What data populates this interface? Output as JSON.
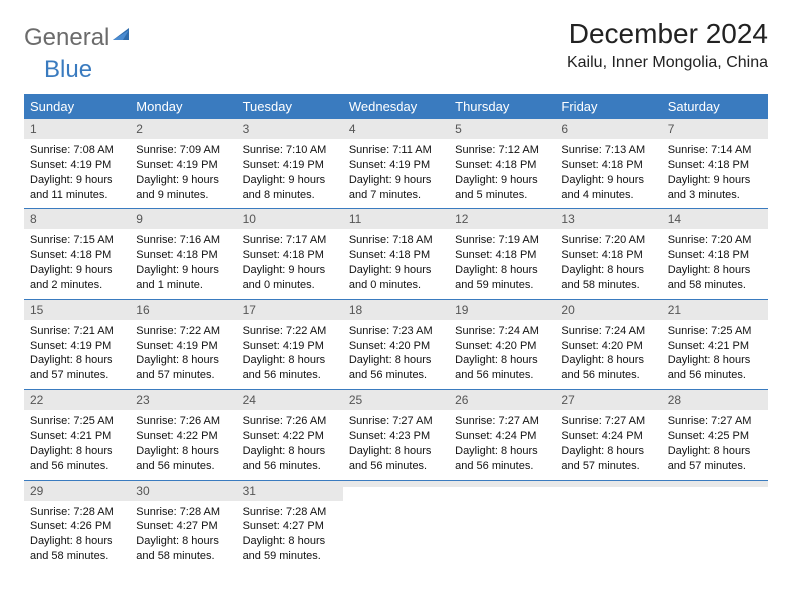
{
  "logo": {
    "text1": "General",
    "text2": "Blue"
  },
  "title": "December 2024",
  "location": "Kailu, Inner Mongolia, China",
  "colors": {
    "header_bg": "#3a7bbf",
    "daybar_bg": "#e8e8e8",
    "logo_gray": "#6b6b6b",
    "logo_blue": "#3a7bbf"
  },
  "day_names": [
    "Sunday",
    "Monday",
    "Tuesday",
    "Wednesday",
    "Thursday",
    "Friday",
    "Saturday"
  ],
  "weeks": [
    [
      {
        "n": "1",
        "sr": "7:08 AM",
        "ss": "4:19 PM",
        "dl": "9 hours and 11 minutes."
      },
      {
        "n": "2",
        "sr": "7:09 AM",
        "ss": "4:19 PM",
        "dl": "9 hours and 9 minutes."
      },
      {
        "n": "3",
        "sr": "7:10 AM",
        "ss": "4:19 PM",
        "dl": "9 hours and 8 minutes."
      },
      {
        "n": "4",
        "sr": "7:11 AM",
        "ss": "4:19 PM",
        "dl": "9 hours and 7 minutes."
      },
      {
        "n": "5",
        "sr": "7:12 AM",
        "ss": "4:18 PM",
        "dl": "9 hours and 5 minutes."
      },
      {
        "n": "6",
        "sr": "7:13 AM",
        "ss": "4:18 PM",
        "dl": "9 hours and 4 minutes."
      },
      {
        "n": "7",
        "sr": "7:14 AM",
        "ss": "4:18 PM",
        "dl": "9 hours and 3 minutes."
      }
    ],
    [
      {
        "n": "8",
        "sr": "7:15 AM",
        "ss": "4:18 PM",
        "dl": "9 hours and 2 minutes."
      },
      {
        "n": "9",
        "sr": "7:16 AM",
        "ss": "4:18 PM",
        "dl": "9 hours and 1 minute."
      },
      {
        "n": "10",
        "sr": "7:17 AM",
        "ss": "4:18 PM",
        "dl": "9 hours and 0 minutes."
      },
      {
        "n": "11",
        "sr": "7:18 AM",
        "ss": "4:18 PM",
        "dl": "9 hours and 0 minutes."
      },
      {
        "n": "12",
        "sr": "7:19 AM",
        "ss": "4:18 PM",
        "dl": "8 hours and 59 minutes."
      },
      {
        "n": "13",
        "sr": "7:20 AM",
        "ss": "4:18 PM",
        "dl": "8 hours and 58 minutes."
      },
      {
        "n": "14",
        "sr": "7:20 AM",
        "ss": "4:18 PM",
        "dl": "8 hours and 58 minutes."
      }
    ],
    [
      {
        "n": "15",
        "sr": "7:21 AM",
        "ss": "4:19 PM",
        "dl": "8 hours and 57 minutes."
      },
      {
        "n": "16",
        "sr": "7:22 AM",
        "ss": "4:19 PM",
        "dl": "8 hours and 57 minutes."
      },
      {
        "n": "17",
        "sr": "7:22 AM",
        "ss": "4:19 PM",
        "dl": "8 hours and 56 minutes."
      },
      {
        "n": "18",
        "sr": "7:23 AM",
        "ss": "4:20 PM",
        "dl": "8 hours and 56 minutes."
      },
      {
        "n": "19",
        "sr": "7:24 AM",
        "ss": "4:20 PM",
        "dl": "8 hours and 56 minutes."
      },
      {
        "n": "20",
        "sr": "7:24 AM",
        "ss": "4:20 PM",
        "dl": "8 hours and 56 minutes."
      },
      {
        "n": "21",
        "sr": "7:25 AM",
        "ss": "4:21 PM",
        "dl": "8 hours and 56 minutes."
      }
    ],
    [
      {
        "n": "22",
        "sr": "7:25 AM",
        "ss": "4:21 PM",
        "dl": "8 hours and 56 minutes."
      },
      {
        "n": "23",
        "sr": "7:26 AM",
        "ss": "4:22 PM",
        "dl": "8 hours and 56 minutes."
      },
      {
        "n": "24",
        "sr": "7:26 AM",
        "ss": "4:22 PM",
        "dl": "8 hours and 56 minutes."
      },
      {
        "n": "25",
        "sr": "7:27 AM",
        "ss": "4:23 PM",
        "dl": "8 hours and 56 minutes."
      },
      {
        "n": "26",
        "sr": "7:27 AM",
        "ss": "4:24 PM",
        "dl": "8 hours and 56 minutes."
      },
      {
        "n": "27",
        "sr": "7:27 AM",
        "ss": "4:24 PM",
        "dl": "8 hours and 57 minutes."
      },
      {
        "n": "28",
        "sr": "7:27 AM",
        "ss": "4:25 PM",
        "dl": "8 hours and 57 minutes."
      }
    ],
    [
      {
        "n": "29",
        "sr": "7:28 AM",
        "ss": "4:26 PM",
        "dl": "8 hours and 58 minutes."
      },
      {
        "n": "30",
        "sr": "7:28 AM",
        "ss": "4:27 PM",
        "dl": "8 hours and 58 minutes."
      },
      {
        "n": "31",
        "sr": "7:28 AM",
        "ss": "4:27 PM",
        "dl": "8 hours and 59 minutes."
      },
      {
        "empty": true
      },
      {
        "empty": true
      },
      {
        "empty": true
      },
      {
        "empty": true
      }
    ]
  ],
  "labels": {
    "sunrise": "Sunrise:",
    "sunset": "Sunset:",
    "daylight": "Daylight:"
  }
}
